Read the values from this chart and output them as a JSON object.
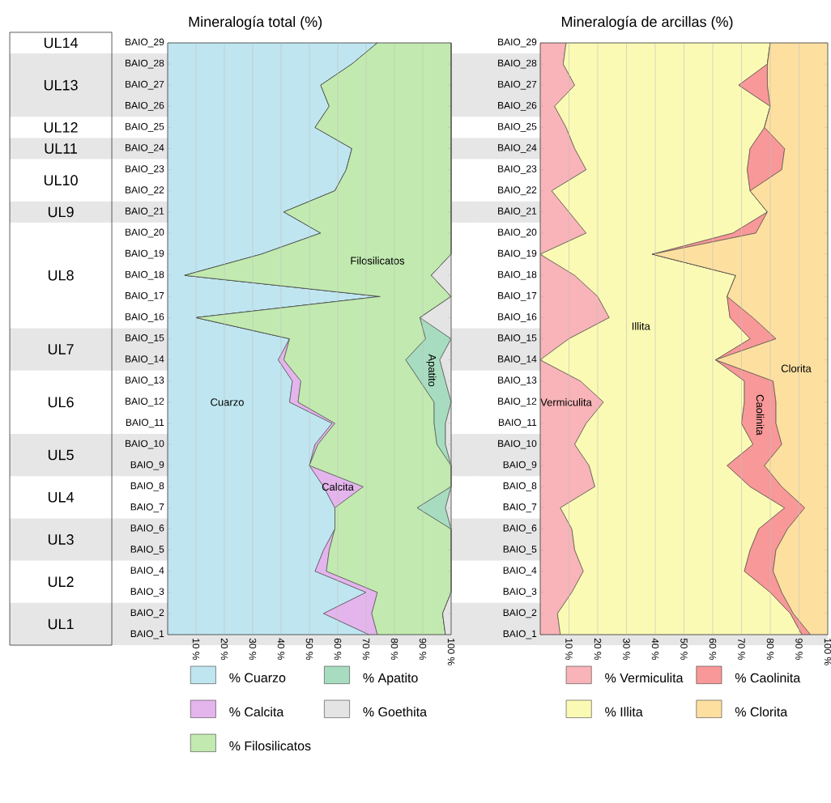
{
  "chart_data": [
    {
      "type": "area",
      "orientation": "horizontal",
      "stacked": true,
      "title": "Mineralogía total (%)",
      "categories": [
        "BAIO_29",
        "BAIO_28",
        "BAIO_27",
        "BAIO_26",
        "BAIO_25",
        "BAIO_24",
        "BAIO_23",
        "BAIO_22",
        "BAIO_21",
        "BAIO_20",
        "BAIO_19",
        "BAIO_18",
        "BAIO_17",
        "BAIO_16",
        "BAIO_15",
        "BAIO_14",
        "BAIO_13",
        "BAIO_12",
        "BAIO_11",
        "BAIO_10",
        "BAIO_9",
        "BAIO_8",
        "BAIO_7",
        "BAIO_6",
        "BAIO_5",
        "BAIO_4",
        "BAIO_3",
        "BAIO_2",
        "BAIO_1"
      ],
      "series": [
        {
          "name": "% Cuarzo",
          "color": "#bfe6f0",
          "values": [
            74,
            65,
            54,
            57,
            52,
            65,
            63,
            59,
            41,
            54,
            33,
            6,
            75,
            10,
            43,
            39,
            44,
            43,
            58,
            52,
            50,
            55,
            59,
            59,
            55,
            52,
            70,
            55,
            71
          ]
        },
        {
          "name": "% Calcita",
          "color": "#e4b4ec",
          "values": [
            0,
            0,
            0,
            0,
            0,
            0,
            0,
            0,
            0,
            0,
            0,
            0,
            0,
            0,
            0,
            2,
            3,
            3,
            1,
            1,
            0,
            14,
            0,
            0,
            2,
            4,
            4,
            17,
            3
          ]
        },
        {
          "name": "% Filosilicatos",
          "color": "#c2eab0",
          "values": [
            26,
            35,
            46,
            43,
            48,
            35,
            37,
            41,
            59,
            46,
            67,
            87,
            25,
            79,
            48,
            43,
            42,
            48,
            35,
            42,
            50,
            31,
            29,
            41,
            43,
            44,
            26,
            25,
            24
          ]
        },
        {
          "name": "% Apatito",
          "color": "#a8dcc0",
          "values": [
            0,
            0,
            0,
            0,
            0,
            0,
            0,
            0,
            0,
            0,
            0,
            0,
            0,
            0,
            9,
            12,
            9,
            6,
            4,
            3,
            0,
            0,
            10,
            0,
            0,
            0,
            0,
            0,
            0
          ]
        },
        {
          "name": "% Goethita",
          "color": "#e4e4e4",
          "values": [
            0,
            0,
            0,
            0,
            0,
            0,
            0,
            0,
            0,
            0,
            0,
            7,
            0,
            11,
            0,
            4,
            2,
            0,
            2,
            2,
            0,
            0,
            2,
            0,
            0,
            0,
            0,
            3,
            2
          ]
        }
      ],
      "xlim": [
        0,
        100
      ],
      "xticks": [
        {
          "value": 10,
          "label": "10 %"
        },
        {
          "value": 20,
          "label": "20 %"
        },
        {
          "value": 30,
          "label": "30 %"
        },
        {
          "value": 40,
          "label": "40 %"
        },
        {
          "value": 50,
          "label": "50 %"
        },
        {
          "value": 60,
          "label": "60 %"
        },
        {
          "value": 70,
          "label": "70 %"
        },
        {
          "value": 80,
          "label": "80 %"
        },
        {
          "value": 90,
          "label": "90 %"
        },
        {
          "value": 100,
          "label": "100 %"
        }
      ],
      "grid": "x",
      "legend": "bottom",
      "bands": [
        {
          "axis": "y",
          "from": "BAIO_28",
          "to": "BAIO_26",
          "label": "UL13",
          "color": "#e6e6e6"
        },
        {
          "axis": "y",
          "from": "BAIO_24",
          "to": "BAIO_24",
          "label": "UL11",
          "color": "#e6e6e6"
        },
        {
          "axis": "y",
          "from": "BAIO_21",
          "to": "BAIO_21",
          "label": "UL9",
          "color": "#e6e6e6"
        },
        {
          "axis": "y",
          "from": "BAIO_15",
          "to": "BAIO_14",
          "label": "UL7",
          "color": "#e6e6e6"
        },
        {
          "axis": "y",
          "from": "BAIO_10",
          "to": "BAIO_9",
          "label": "UL5",
          "color": "#e6e6e6"
        },
        {
          "axis": "y",
          "from": "BAIO_6",
          "to": "BAIO_5",
          "label": "UL3",
          "color": "#e6e6e6"
        },
        {
          "axis": "y",
          "from": "BAIO_2",
          "to": "BAIO_1",
          "label": "UL1",
          "color": "#e6e6e6"
        }
      ],
      "annotations": [
        "UL14",
        "UL12",
        "UL10",
        "UL8",
        "UL6",
        "UL4",
        "UL2",
        "Cuarzo",
        "Calcita",
        "Filosilicatos",
        "Apatito"
      ]
    },
    {
      "type": "area",
      "orientation": "horizontal",
      "stacked": true,
      "title": "Mineralogía de arcillas (%)",
      "categories": [
        "BAIO_29",
        "BAIO_28",
        "BAIO_27",
        "BAIO_26",
        "BAIO_25",
        "BAIO_24",
        "BAIO_23",
        "BAIO_22",
        "BAIO_21",
        "BAIO_20",
        "BAIO_19",
        "BAIO_18",
        "BAIO_17",
        "BAIO_16",
        "BAIO_15",
        "BAIO_14",
        "BAIO_13",
        "BAIO_12",
        "BAIO_11",
        "BAIO_10",
        "BAIO_9",
        "BAIO_8",
        "BAIO_7",
        "BAIO_6",
        "BAIO_5",
        "BAIO_4",
        "BAIO_3",
        "BAIO_2",
        "BAIO_1"
      ],
      "series": [
        {
          "name": "% Vermiculita",
          "color": "#f8b4b8",
          "values": [
            9,
            8,
            12,
            5,
            9,
            12,
            16,
            4,
            10,
            16,
            0,
            12,
            20,
            24,
            10,
            0,
            14,
            22,
            16,
            12,
            17,
            19,
            7,
            11,
            12,
            15,
            11,
            6,
            7
          ]
        },
        {
          "name": "% Illita",
          "color": "#fafab4",
          "values": [
            71,
            71,
            57,
            75,
            69,
            61,
            56,
            69,
            69,
            51,
            39,
            56,
            45,
            42,
            63,
            61,
            57,
            49,
            54,
            62,
            48,
            54,
            78,
            65,
            61,
            56,
            69,
            81,
            84
          ]
        },
        {
          "name": "% Caolinita",
          "color": "#f89898",
          "values": [
            0,
            0,
            10,
            0,
            0,
            12,
            12,
            0,
            0,
            8,
            0,
            0,
            0,
            8,
            9,
            0,
            10,
            11,
            12,
            10,
            13,
            11,
            7,
            10,
            9,
            10,
            4,
            1,
            3
          ]
        },
        {
          "name": "% Clorita",
          "color": "#fde0a0",
          "values": [
            20,
            21,
            21,
            20,
            22,
            15,
            16,
            27,
            21,
            25,
            61,
            32,
            35,
            26,
            18,
            39,
            19,
            18,
            18,
            16,
            22,
            16,
            8,
            14,
            18,
            19,
            16,
            12,
            6
          ]
        }
      ],
      "xlim": [
        0,
        100
      ],
      "xticks": [
        {
          "value": 10,
          "label": "10 %"
        },
        {
          "value": 20,
          "label": "20 %"
        },
        {
          "value": 30,
          "label": "30 %"
        },
        {
          "value": 40,
          "label": "40 %"
        },
        {
          "value": 50,
          "label": "50 %"
        },
        {
          "value": 60,
          "label": "60 %"
        },
        {
          "value": 70,
          "label": "70 %"
        },
        {
          "value": 80,
          "label": "80 %"
        },
        {
          "value": 90,
          "label": "90 %"
        },
        {
          "value": 100,
          "label": "100 %"
        }
      ],
      "grid": "x",
      "legend": "bottom",
      "bands": [
        {
          "axis": "y",
          "from": "BAIO_28",
          "to": "BAIO_26",
          "color": "#e6e6e6"
        },
        {
          "axis": "y",
          "from": "BAIO_24",
          "to": "BAIO_24",
          "color": "#e6e6e6"
        },
        {
          "axis": "y",
          "from": "BAIO_21",
          "to": "BAIO_21",
          "color": "#e6e6e6"
        },
        {
          "axis": "y",
          "from": "BAIO_15",
          "to": "BAIO_14",
          "color": "#e6e6e6"
        },
        {
          "axis": "y",
          "from": "BAIO_10",
          "to": "BAIO_9",
          "color": "#e6e6e6"
        },
        {
          "axis": "y",
          "from": "BAIO_6",
          "to": "BAIO_5",
          "color": "#e6e6e6"
        },
        {
          "axis": "y",
          "from": "BAIO_2",
          "to": "BAIO_1",
          "color": "#e6e6e6"
        }
      ],
      "annotations": [
        "Illita",
        "Vermiculita",
        "Caolinita",
        "Clorita"
      ]
    }
  ]
}
